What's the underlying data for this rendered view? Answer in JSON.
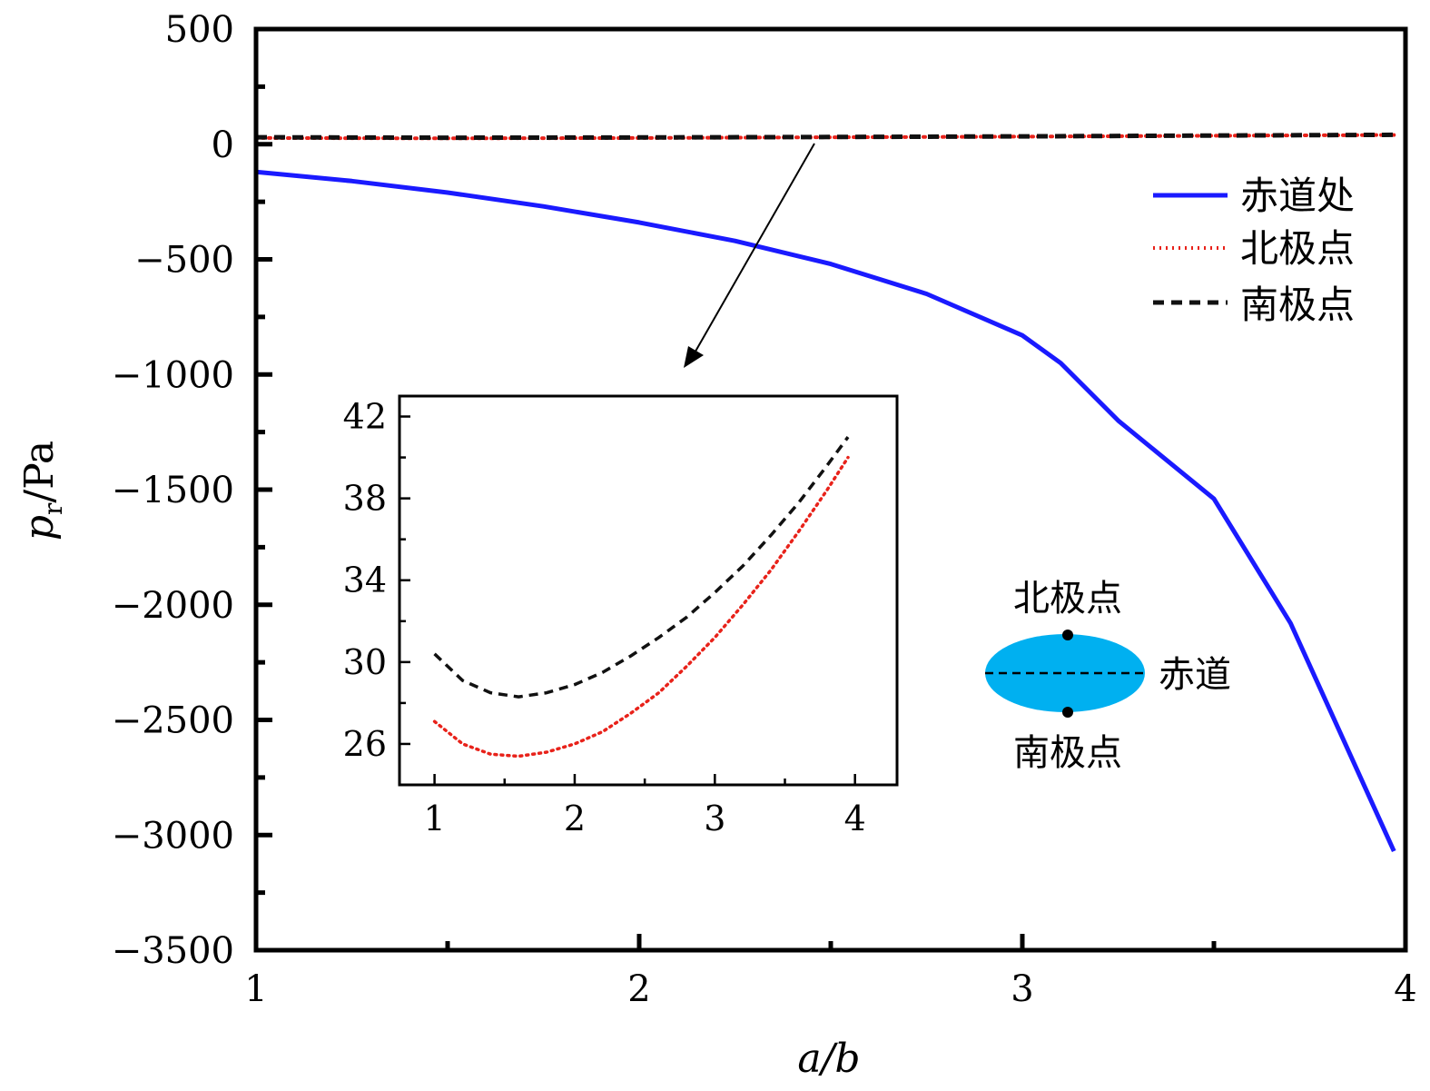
{
  "chart_data": [
    {
      "type": "line",
      "xlabel": "a/b",
      "ylabel": "p_r/Pa",
      "ylabel_parts": {
        "var": "p",
        "sub": "r",
        "rest": "/Pa"
      },
      "xlim": [
        1,
        4
      ],
      "ylim": [
        -3500,
        500
      ],
      "xticks": [
        1,
        2,
        3,
        4
      ],
      "xtick_labels": [
        "1",
        "2",
        "3",
        "4"
      ],
      "yticks": [
        500,
        0,
        -500,
        -1000,
        -1500,
        -2000,
        -2500,
        -3000,
        -3500
      ],
      "ytick_labels": [
        "500",
        "0",
        "−500",
        "−1000",
        "−1500",
        "−2000",
        "−2500",
        "−3000",
        "−3500"
      ],
      "legend_position": "top-right",
      "series": [
        {
          "name": "赤道处",
          "style": "solid",
          "color": "#1a1aff",
          "x": [
            1.0,
            1.25,
            1.5,
            1.75,
            2.0,
            2.25,
            2.5,
            2.75,
            3.0,
            3.1,
            3.25,
            3.5,
            3.7,
            3.97
          ],
          "y": [
            -120,
            -160,
            -210,
            -270,
            -340,
            -420,
            -520,
            -650,
            -830,
            -950,
            -1200,
            -1540,
            -2080,
            -3070
          ]
        },
        {
          "name": "北极点",
          "style": "dotted",
          "color": "#e8221a",
          "x": [
            1.0,
            1.5,
            2.0,
            2.5,
            3.0,
            3.5,
            3.97
          ],
          "y": [
            27,
            25.5,
            27,
            30,
            33,
            37,
            40
          ]
        },
        {
          "name": "南极点",
          "style": "dashed",
          "color": "#111111",
          "x": [
            1.0,
            1.5,
            2.0,
            2.5,
            3.0,
            3.5,
            3.97
          ],
          "y": [
            30.3,
            28.4,
            29.3,
            31.5,
            34.3,
            37.5,
            41
          ]
        }
      ]
    },
    {
      "type": "line",
      "role": "inset",
      "xlim": [
        0.75,
        4.3
      ],
      "ylim": [
        24,
        43
      ],
      "xticks": [
        1,
        2,
        3,
        4
      ],
      "xtick_labels": [
        "1",
        "2",
        "3",
        "4"
      ],
      "yticks": [
        26,
        30,
        34,
        38,
        42
      ],
      "ytick_labels": [
        "26",
        "30",
        "34",
        "38",
        "42"
      ],
      "series": [
        {
          "name": "北极点",
          "style": "dotted",
          "color": "#e8221a",
          "x": [
            1.0,
            1.2,
            1.4,
            1.6,
            1.8,
            2.0,
            2.2,
            2.4,
            2.6,
            2.8,
            3.0,
            3.2,
            3.4,
            3.6,
            3.8,
            3.95
          ],
          "y": [
            27.1,
            26.0,
            25.5,
            25.4,
            25.6,
            26.0,
            26.6,
            27.5,
            28.5,
            29.8,
            31.2,
            32.8,
            34.5,
            36.4,
            38.4,
            40.0
          ]
        },
        {
          "name": "南极点",
          "style": "dashed",
          "color": "#111111",
          "x": [
            1.0,
            1.2,
            1.4,
            1.6,
            1.8,
            2.0,
            2.2,
            2.4,
            2.6,
            2.8,
            3.0,
            3.2,
            3.4,
            3.6,
            3.8,
            3.95
          ],
          "y": [
            30.4,
            29.1,
            28.5,
            28.3,
            28.5,
            28.9,
            29.5,
            30.3,
            31.2,
            32.2,
            33.4,
            34.7,
            36.2,
            37.8,
            39.6,
            41.0
          ]
        }
      ]
    }
  ],
  "annotation": {
    "arrow_from": [
      2.5,
      20
    ],
    "arrow_to_target": "inset"
  },
  "diagram": {
    "north_label": "北极点",
    "south_label": "南极点",
    "equator_label": "赤道",
    "ellipse_color": "#00b0f0"
  }
}
